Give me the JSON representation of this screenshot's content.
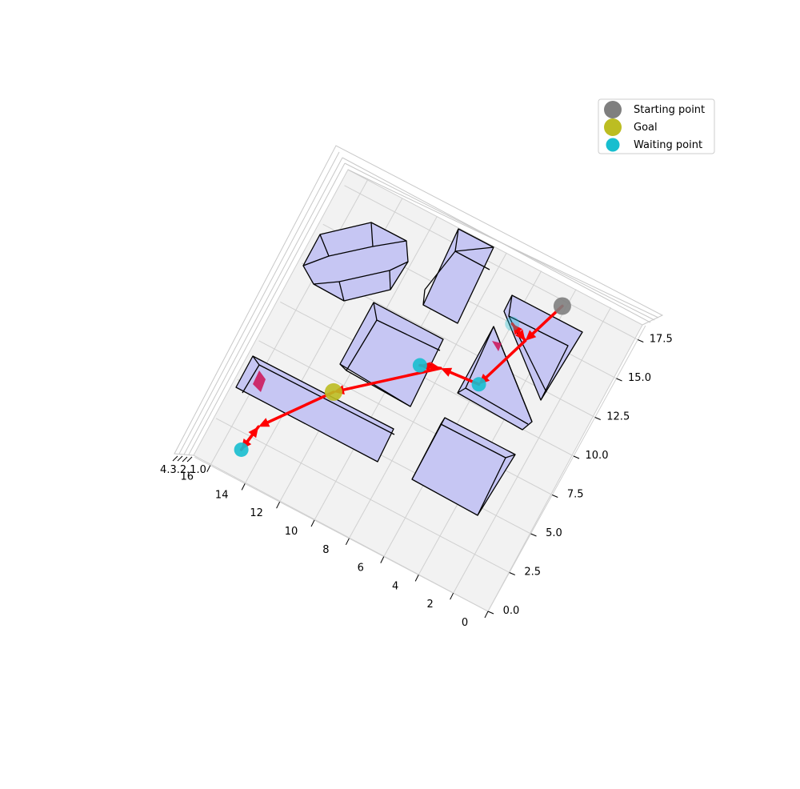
{
  "chart_data": {
    "type": "scatter",
    "projection": "3d",
    "view": "top-down, rotated",
    "grid": true,
    "x_ticks": [
      "0",
      "2",
      "4",
      "6",
      "8",
      "10",
      "12",
      "14",
      "16"
    ],
    "y_ticks": [
      "0.0",
      "2.5",
      "5.0",
      "7.5",
      "10.0",
      "12.5",
      "15.0",
      "17.5"
    ],
    "z_ticks_label": "4.3.2.1.0",
    "xlim": [
      0,
      17
    ],
    "ylim": [
      0,
      18.5
    ],
    "legend": {
      "position": "top-right",
      "entries": [
        {
          "label": "Starting point",
          "color": "#7f7f7f"
        },
        {
          "label": "Goal",
          "color": "#bcbd22"
        },
        {
          "label": "Waiting point",
          "color": "#17becf"
        }
      ]
    },
    "series": [
      {
        "name": "Starting point",
        "color": "#7f7f7f",
        "points": [
          {
            "x": 4.2,
            "y": 17.2
          }
        ]
      },
      {
        "name": "Goal",
        "color": "#bcbd22",
        "points": [
          {
            "x": 12.3,
            "y": 6.9
          }
        ]
      },
      {
        "name": "Waiting point",
        "color": "#17becf",
        "points": [
          {
            "x": 15.0,
            "y": 1.6
          },
          {
            "x": 6.0,
            "y": 11.1
          },
          {
            "x": 6.0,
            "y": 15.0
          },
          {
            "x": 9.1,
            "y": 10.5
          }
        ]
      }
    ],
    "path_color": "#ff0000",
    "obstacle_fill": "#c6c6f3",
    "obstacle_edge": "#000000",
    "path_arrows": [
      {
        "from": [
          4.2,
          17.2
        ],
        "to": [
          5.0,
          14.5
        ]
      },
      {
        "from": [
          5.0,
          14.5
        ],
        "to": [
          6.0,
          15.0
        ]
      },
      {
        "from": [
          6.0,
          15.0
        ],
        "to": [
          5.0,
          14.5
        ]
      },
      {
        "from": [
          5.0,
          14.5
        ],
        "to": [
          6.0,
          11.1
        ]
      },
      {
        "from": [
          6.0,
          11.1
        ],
        "to": [
          8.1,
          10.9
        ]
      },
      {
        "from": [
          8.1,
          10.9
        ],
        "to": [
          9.1,
          10.5
        ]
      },
      {
        "from": [
          9.1,
          10.5
        ],
        "to": [
          8.1,
          10.9
        ]
      },
      {
        "from": [
          8.1,
          10.9
        ],
        "to": [
          12.3,
          6.9
        ]
      },
      {
        "from": [
          12.3,
          6.9
        ],
        "to": [
          14.8,
          3.2
        ]
      },
      {
        "from": [
          14.8,
          3.2
        ],
        "to": [
          15.0,
          1.6
        ]
      },
      {
        "from": [
          15.0,
          1.6
        ],
        "to": [
          14.8,
          3.2
        ]
      }
    ]
  }
}
